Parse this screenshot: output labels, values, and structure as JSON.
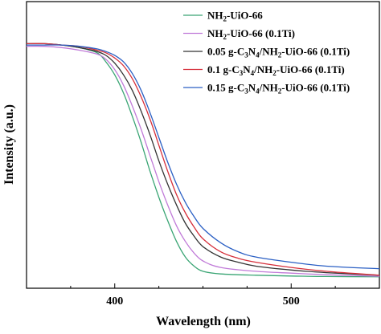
{
  "chart_data": {
    "type": "line",
    "title": "",
    "xlabel": "Wavelength (nm)",
    "ylabel": "Intensity (a.u.)",
    "xlim": [
      350,
      550
    ],
    "ylim": [
      0,
      1.0
    ],
    "x_ticks": [
      400,
      500
    ],
    "x_tick_labels": [
      "400",
      "500"
    ],
    "y_ticks_shown": false,
    "grid": false,
    "legend_position": "top-right",
    "series": [
      {
        "name": "NH2-UiO-66",
        "color": "#3aa574",
        "points": [
          [
            350,
            0.94
          ],
          [
            360,
            0.94
          ],
          [
            370,
            0.935
          ],
          [
            380,
            0.925
          ],
          [
            390,
            0.905
          ],
          [
            395,
            0.87
          ],
          [
            400,
            0.82
          ],
          [
            405,
            0.75
          ],
          [
            410,
            0.66
          ],
          [
            415,
            0.56
          ],
          [
            420,
            0.45
          ],
          [
            425,
            0.35
          ],
          [
            430,
            0.26
          ],
          [
            435,
            0.18
          ],
          [
            440,
            0.12
          ],
          [
            445,
            0.085
          ],
          [
            450,
            0.065
          ],
          [
            460,
            0.055
          ],
          [
            480,
            0.05
          ],
          [
            500,
            0.047
          ],
          [
            520,
            0.045
          ],
          [
            550,
            0.044
          ]
        ]
      },
      {
        "name": "NH2-UiO-66 (0.1Ti)",
        "color": "#c07ad8",
        "points": [
          [
            350,
            0.93
          ],
          [
            360,
            0.93
          ],
          [
            370,
            0.925
          ],
          [
            380,
            0.915
          ],
          [
            390,
            0.9
          ],
          [
            395,
            0.88
          ],
          [
            400,
            0.84
          ],
          [
            405,
            0.78
          ],
          [
            410,
            0.7
          ],
          [
            415,
            0.61
          ],
          [
            420,
            0.51
          ],
          [
            425,
            0.41
          ],
          [
            430,
            0.32
          ],
          [
            435,
            0.24
          ],
          [
            440,
            0.18
          ],
          [
            445,
            0.135
          ],
          [
            450,
            0.105
          ],
          [
            460,
            0.08
          ],
          [
            480,
            0.065
          ],
          [
            500,
            0.058
          ],
          [
            520,
            0.052
          ],
          [
            550,
            0.046
          ]
        ]
      },
      {
        "name": "0.05 g-C3N4/NH2-UiO-66 (0.1Ti)",
        "color": "#333333",
        "points": [
          [
            350,
            0.94
          ],
          [
            360,
            0.94
          ],
          [
            370,
            0.935
          ],
          [
            380,
            0.925
          ],
          [
            390,
            0.91
          ],
          [
            395,
            0.895
          ],
          [
            400,
            0.865
          ],
          [
            405,
            0.82
          ],
          [
            410,
            0.76
          ],
          [
            415,
            0.68
          ],
          [
            420,
            0.59
          ],
          [
            425,
            0.49
          ],
          [
            430,
            0.4
          ],
          [
            435,
            0.32
          ],
          [
            440,
            0.25
          ],
          [
            445,
            0.2
          ],
          [
            450,
            0.16
          ],
          [
            460,
            0.12
          ],
          [
            470,
            0.1
          ],
          [
            480,
            0.085
          ],
          [
            500,
            0.07
          ],
          [
            520,
            0.06
          ],
          [
            550,
            0.05
          ]
        ]
      },
      {
        "name": "0.1 g-C3N4/NH2-UiO-66 (0.1Ti)",
        "color": "#d62f3a",
        "points": [
          [
            350,
            0.94
          ],
          [
            360,
            0.94
          ],
          [
            370,
            0.935
          ],
          [
            380,
            0.93
          ],
          [
            390,
            0.915
          ],
          [
            395,
            0.905
          ],
          [
            400,
            0.885
          ],
          [
            405,
            0.855
          ],
          [
            410,
            0.805
          ],
          [
            415,
            0.735
          ],
          [
            420,
            0.65
          ],
          [
            425,
            0.55
          ],
          [
            430,
            0.45
          ],
          [
            435,
            0.36
          ],
          [
            440,
            0.29
          ],
          [
            445,
            0.235
          ],
          [
            450,
            0.19
          ],
          [
            460,
            0.14
          ],
          [
            470,
            0.115
          ],
          [
            480,
            0.1
          ],
          [
            500,
            0.08
          ],
          [
            520,
            0.065
          ],
          [
            550,
            0.05
          ]
        ]
      },
      {
        "name": "0.15 g-C3N4/NH2-UiO-66 (0.1Ti)",
        "color": "#2a5fc4",
        "points": [
          [
            350,
            0.935
          ],
          [
            360,
            0.935
          ],
          [
            370,
            0.935
          ],
          [
            380,
            0.93
          ],
          [
            390,
            0.92
          ],
          [
            395,
            0.91
          ],
          [
            400,
            0.895
          ],
          [
            405,
            0.87
          ],
          [
            410,
            0.825
          ],
          [
            415,
            0.76
          ],
          [
            420,
            0.675
          ],
          [
            425,
            0.58
          ],
          [
            430,
            0.485
          ],
          [
            435,
            0.4
          ],
          [
            440,
            0.33
          ],
          [
            445,
            0.275
          ],
          [
            450,
            0.23
          ],
          [
            460,
            0.175
          ],
          [
            470,
            0.14
          ],
          [
            480,
            0.12
          ],
          [
            500,
            0.1
          ],
          [
            520,
            0.085
          ],
          [
            550,
            0.075
          ]
        ]
      }
    ],
    "legend_entries": [
      {
        "prefix": "NH",
        "sub1": "2",
        "mid1": "-UiO-66",
        "sub2": "",
        "mid2": "",
        "sub3": "",
        "suffix": ""
      },
      {
        "prefix": "NH",
        "sub1": "2",
        "mid1": "-UiO-66 (0.1Ti)",
        "sub2": "",
        "mid2": "",
        "sub3": "",
        "suffix": ""
      },
      {
        "prefix": "0.05 g-C",
        "sub1": "3",
        "mid1": "N",
        "sub2": "4",
        "mid2": "/NH",
        "sub3": "2",
        "suffix": "-UiO-66 (0.1Ti)"
      },
      {
        "prefix": "0.1 g-C",
        "sub1": "3",
        "mid1": "N",
        "sub2": "4",
        "mid2": "/NH",
        "sub3": "2",
        "suffix": "-UiO-66 (0.1Ti)"
      },
      {
        "prefix": "0.15 g-C",
        "sub1": "3",
        "mid1": "N",
        "sub2": "4",
        "mid2": "/NH",
        "sub3": "2",
        "suffix": "-UiO-66 (0.1Ti)"
      }
    ]
  }
}
